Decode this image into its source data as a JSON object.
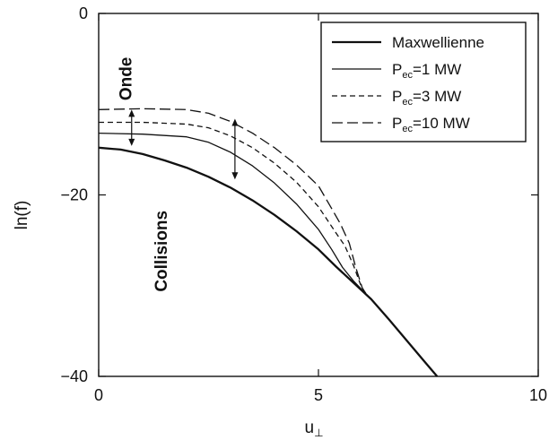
{
  "chart_data": {
    "type": "line",
    "xlabel": "u",
    "xlabel_sub": "⊥",
    "ylabel": "ln(f)",
    "xlim": [
      0,
      10
    ],
    "ylim": [
      -40,
      0
    ],
    "x_ticks": [
      0,
      5,
      10
    ],
    "x_tick_labels": [
      "0",
      "5",
      "10"
    ],
    "y_ticks": [
      0,
      -20,
      -40
    ],
    "y_tick_labels": [
      "0",
      "−20",
      "−40"
    ],
    "grid": false,
    "legend_position": "top-right",
    "series": [
      {
        "name": "Maxwellienne",
        "legend_main": "Maxwellienne",
        "legend_sub": "",
        "legend_suffix": "",
        "style": "solid-thick",
        "x": [
          0,
          0.5,
          1,
          1.5,
          2,
          2.5,
          3,
          3.5,
          4,
          4.5,
          5,
          5.4,
          5.8,
          6.2,
          6.6,
          7.0,
          7.4,
          7.7
        ],
        "y": [
          -14.8,
          -15.0,
          -15.5,
          -16.2,
          -17.0,
          -18.0,
          -19.2,
          -20.6,
          -22.2,
          -24.0,
          -26.0,
          -27.9,
          -29.7,
          -31.5,
          -33.7,
          -36.0,
          -38.3,
          -40.0
        ]
      },
      {
        "name": "Pec=1 MW",
        "legend_main": "P",
        "legend_sub": "ec",
        "legend_suffix": "=1 MW",
        "style": "solid-thin",
        "x": [
          0,
          1,
          2,
          2.5,
          3,
          3.5,
          4,
          4.5,
          5,
          5.3,
          5.55,
          5.8,
          6.0,
          6.1
        ],
        "y": [
          -13.2,
          -13.3,
          -13.6,
          -14.2,
          -15.3,
          -16.8,
          -18.7,
          -21.0,
          -23.8,
          -26.0,
          -28.0,
          -29.5,
          -30.5,
          -31.0
        ]
      },
      {
        "name": "Pec=3 MW",
        "legend_main": "P",
        "legend_sub": "ec",
        "legend_suffix": "=3 MW",
        "style": "dashed-short",
        "x": [
          0,
          1,
          2,
          2.5,
          3,
          3.5,
          4,
          4.5,
          5,
          5.4,
          5.6,
          5.8,
          5.95,
          6.05,
          6.1
        ],
        "y": [
          -12.0,
          -12.0,
          -12.2,
          -12.6,
          -13.5,
          -14.8,
          -16.5,
          -18.6,
          -21.3,
          -24.2,
          -25.6,
          -27.8,
          -29.8,
          -30.7,
          -31.0
        ]
      },
      {
        "name": "Pec=10 MW",
        "legend_main": "P",
        "legend_sub": "ec",
        "legend_suffix": "=10 MW",
        "style": "dashed-long",
        "x": [
          0,
          1,
          2,
          2.5,
          3,
          3.5,
          4,
          4.5,
          5,
          5.3,
          5.5,
          5.7,
          5.85,
          6.0,
          6.1
        ],
        "y": [
          -10.6,
          -10.5,
          -10.6,
          -11.0,
          -11.9,
          -13.2,
          -14.8,
          -16.7,
          -19.0,
          -21.5,
          -23.2,
          -25.3,
          -28.0,
          -30.3,
          -31.0
        ]
      }
    ],
    "annotations": [
      {
        "text": "Onde",
        "x": 0.75,
        "y": -7.2,
        "rotate": -90
      },
      {
        "text": "Collisions",
        "x": 1.55,
        "y": -26.2,
        "rotate": -90
      }
    ],
    "arrows": [
      {
        "x": 0.75,
        "y_from": -14.6,
        "y_to": -10.6
      },
      {
        "x": 3.1,
        "y_from": -11.6,
        "y_to": -18.3
      }
    ]
  }
}
